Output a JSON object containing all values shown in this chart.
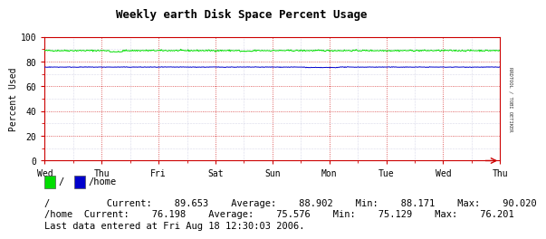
{
  "title": "Weekly earth Disk Space Percent Usage",
  "ylabel": "Percent Used",
  "xlabels": [
    "Wed",
    "Thu",
    "Fri",
    "Sat",
    "Sun",
    "Mon",
    "Tue",
    "Wed",
    "Thu"
  ],
  "ylim": [
    0,
    100
  ],
  "yticks": [
    0,
    20,
    40,
    60,
    80,
    100
  ],
  "bg_color": "#ffffff",
  "plot_bg_color": "#ffffff",
  "grid_major_color": "#cc0000",
  "grid_minor_color": "#8888bb",
  "line1_color": "#00dd00",
  "line2_color": "#0000cc",
  "line1_avg": 88.902,
  "line1_min": 88.171,
  "line1_max": 90.02,
  "line1_current": 89.653,
  "line2_avg": 75.576,
  "line2_min": 75.129,
  "line2_max": 76.201,
  "line2_current": 76.198,
  "legend1_label": "/",
  "legend2_label": "/home",
  "right_label": "RRDTOOL / TOBI OETIKER",
  "footer": "Last data entered at Fri Aug 18 12:30:03 2006.",
  "num_points": 700,
  "title_fontsize": 9,
  "axis_fontsize": 7,
  "stats_fontsize": 7.5
}
